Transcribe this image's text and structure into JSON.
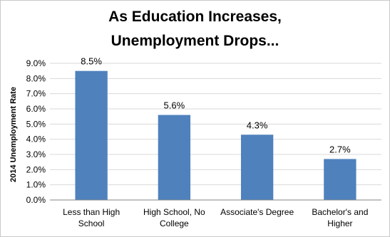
{
  "chart_data": {
    "type": "bar",
    "title_lines": [
      "As Education Increases,",
      "Unemployment Drops..."
    ],
    "ylabel": "2014 Unemployment Rate",
    "xlabel": "",
    "categories": [
      [
        "Less than High",
        "School"
      ],
      [
        "High School, No",
        "College"
      ],
      [
        "Associate's Degree"
      ],
      [
        "Bachelor's and",
        "Higher"
      ]
    ],
    "values": [
      8.5,
      5.6,
      4.3,
      2.7
    ],
    "data_labels": [
      "8.5%",
      "5.6%",
      "4.3%",
      "2.7%"
    ],
    "ylim": [
      0,
      9
    ],
    "yticks": [
      0,
      1,
      2,
      3,
      4,
      5,
      6,
      7,
      8,
      9
    ],
    "ytick_labels": [
      "0.0%",
      "1.0%",
      "2.0%",
      "3.0%",
      "4.0%",
      "5.0%",
      "6.0%",
      "7.0%",
      "8.0%",
      "9.0%"
    ],
    "grid": true,
    "bar_color": "#4f81bd",
    "grid_color": "#d9d9d9",
    "axis_color": "#868686"
  }
}
